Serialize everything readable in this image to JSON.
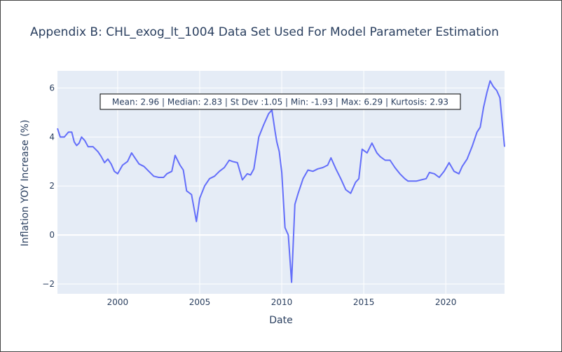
{
  "chart_data": {
    "type": "line",
    "title": "Appendix B: CHL_exog_lt_1004 Data Set Used For Model Parameter Estimation",
    "xlabel": "Date",
    "ylabel": "Inflation YOY Increase (%)",
    "xlim": [
      1996.33,
      2023.58
    ],
    "ylim": [
      -2.4,
      6.7
    ],
    "x_ticks": [
      "2000",
      "2005",
      "2010",
      "2015",
      "2020"
    ],
    "y_ticks": [
      "−2",
      "0",
      "2",
      "4",
      "6"
    ],
    "annotation": "Mean: 2.96 | Median: 2.83 | St Dev :1.05 | Min: -1.93 | Max: 6.29 | Kurtosis: 2.93",
    "grid": true,
    "series": [
      {
        "name": "",
        "color": "#636efa",
        "x": [
          1996.33,
          1996.5,
          1996.75,
          1997.0,
          1997.2,
          1997.35,
          1997.5,
          1997.65,
          1997.8,
          1998.0,
          1998.2,
          1998.5,
          1998.8,
          1999.0,
          1999.2,
          1999.4,
          1999.6,
          1999.8,
          2000.0,
          2000.3,
          2000.6,
          2000.85,
          2001.0,
          2001.3,
          2001.6,
          2001.9,
          2002.2,
          2002.5,
          2002.8,
          2003.0,
          2003.3,
          2003.5,
          2003.8,
          2004.0,
          2004.2,
          2004.5,
          2004.8,
          2005.0,
          2005.3,
          2005.6,
          2005.9,
          2006.2,
          2006.5,
          2006.8,
          2007.0,
          2007.3,
          2007.6,
          2007.9,
          2008.1,
          2008.3,
          2008.6,
          2008.9,
          2009.2,
          2009.4,
          2009.6,
          2009.7,
          2009.85,
          2010.0,
          2010.2,
          2010.4,
          2010.6,
          2010.8,
          2011.0,
          2011.3,
          2011.6,
          2011.9,
          2012.2,
          2012.5,
          2012.8,
          2013.0,
          2013.3,
          2013.6,
          2013.9,
          2014.2,
          2014.5,
          2014.7,
          2014.9,
          2015.2,
          2015.5,
          2015.8,
          2016.0,
          2016.3,
          2016.6,
          2016.9,
          2017.2,
          2017.5,
          2017.7,
          2017.9,
          2018.2,
          2018.5,
          2018.8,
          2019.0,
          2019.3,
          2019.6,
          2019.9,
          2020.2,
          2020.5,
          2020.8,
          2021.0,
          2021.3,
          2021.6,
          2021.9,
          2022.1,
          2022.3,
          2022.5,
          2022.7,
          2022.9,
          2023.1,
          2023.3,
          2023.58
        ],
        "values": [
          4.35,
          4.0,
          4.0,
          4.2,
          4.2,
          3.8,
          3.65,
          3.75,
          4.0,
          3.85,
          3.6,
          3.6,
          3.4,
          3.2,
          2.95,
          3.1,
          2.9,
          2.6,
          2.5,
          2.85,
          3.0,
          3.35,
          3.2,
          2.9,
          2.8,
          2.6,
          2.4,
          2.35,
          2.35,
          2.5,
          2.6,
          3.25,
          2.85,
          2.65,
          1.8,
          1.65,
          0.55,
          1.5,
          2.0,
          2.3,
          2.4,
          2.6,
          2.75,
          3.05,
          3.0,
          2.95,
          2.25,
          2.5,
          2.45,
          2.7,
          4.0,
          4.5,
          4.95,
          5.1,
          4.2,
          3.8,
          3.4,
          2.55,
          0.3,
          0.0,
          -1.93,
          1.25,
          1.7,
          2.3,
          2.65,
          2.6,
          2.7,
          2.75,
          2.85,
          3.15,
          2.7,
          2.3,
          1.85,
          1.7,
          2.15,
          2.3,
          3.5,
          3.35,
          3.75,
          3.35,
          3.2,
          3.05,
          3.05,
          2.75,
          2.5,
          2.3,
          2.2,
          2.2,
          2.2,
          2.25,
          2.3,
          2.55,
          2.5,
          2.35,
          2.6,
          2.95,
          2.6,
          2.5,
          2.8,
          3.1,
          3.6,
          4.2,
          4.4,
          5.2,
          5.8,
          6.29,
          6.05,
          5.9,
          5.6,
          3.6
        ]
      }
    ]
  }
}
